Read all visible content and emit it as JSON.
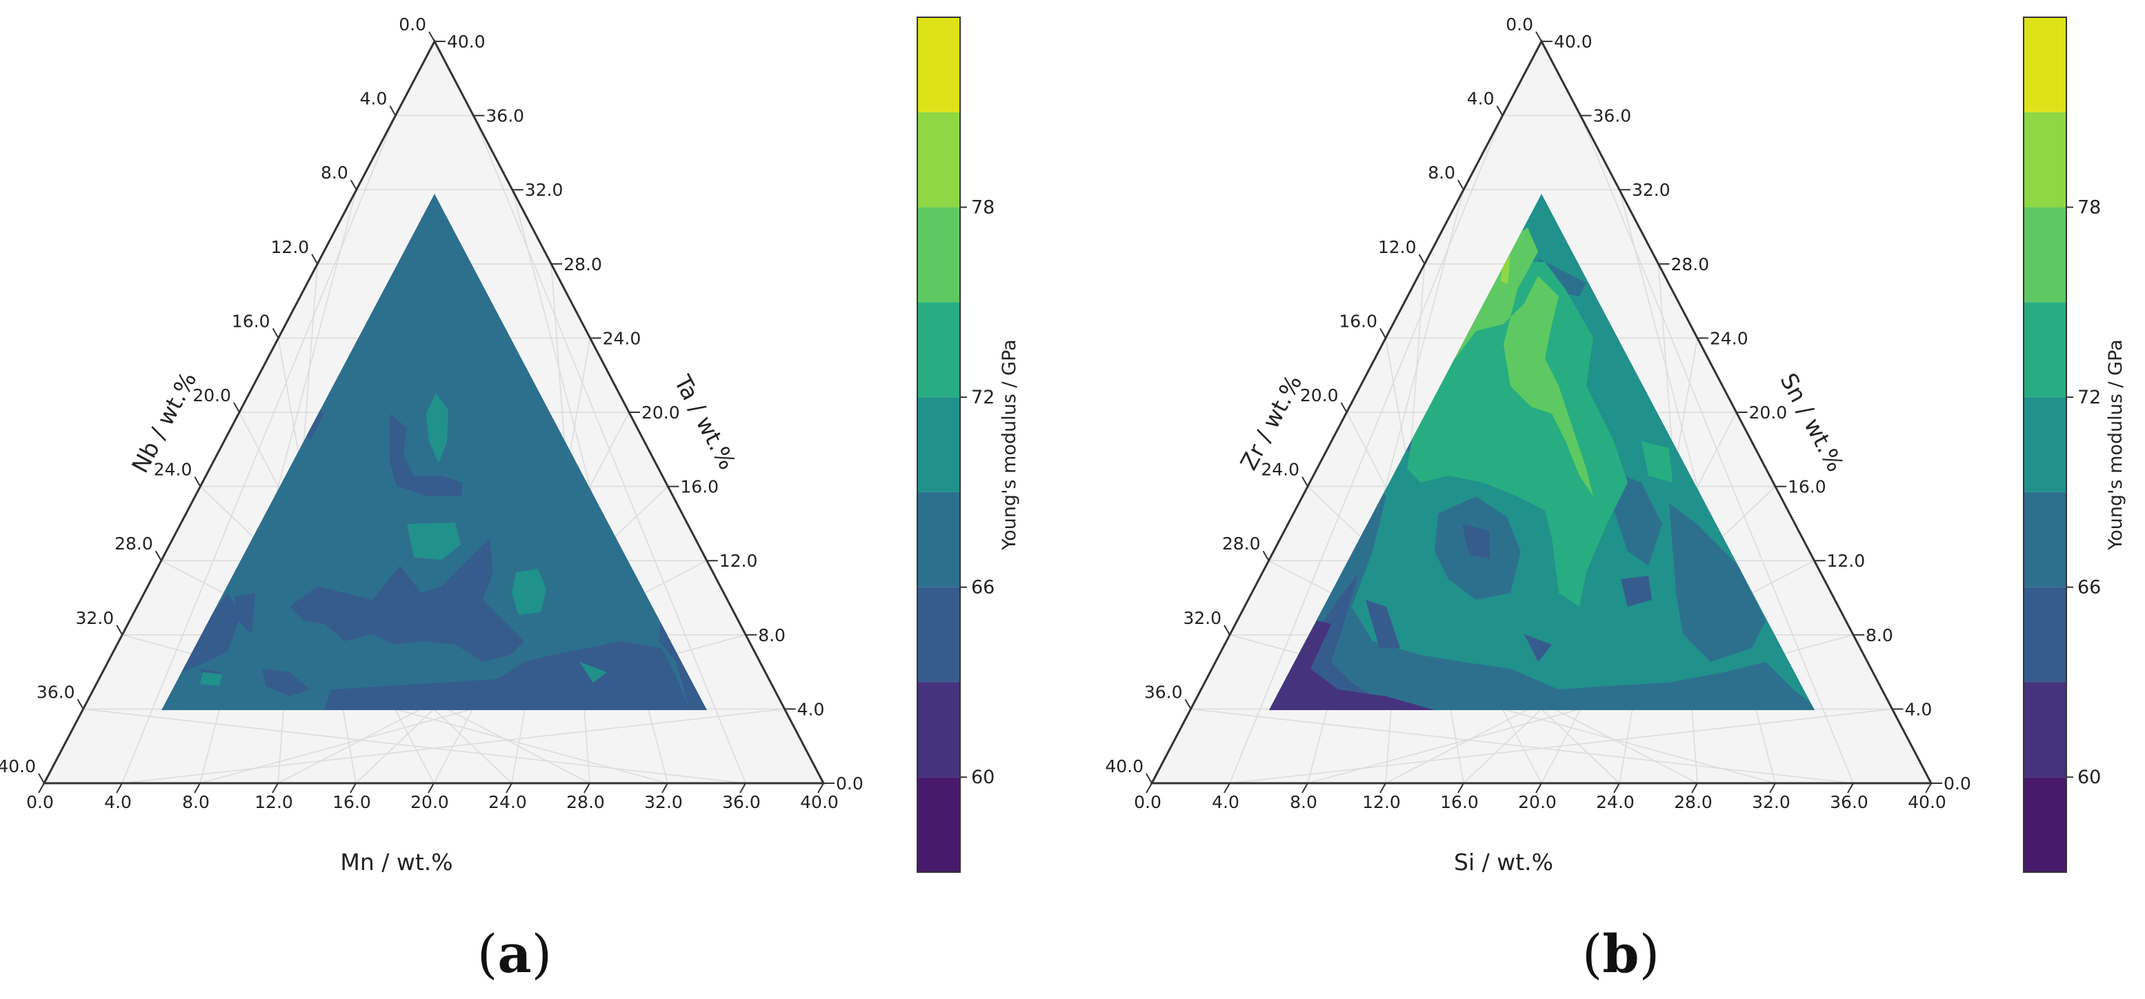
{
  "chart_data": [
    {
      "type": "heatmap",
      "subtype": "ternary-contour",
      "panel_label": "a",
      "bottom_axis_label": "Mn / wt.%",
      "right_axis_label": "Ta / wt.%",
      "left_axis_label": "Nb / wt.%",
      "ticks": [
        "0.0",
        "4.0",
        "8.0",
        "12.0",
        "16.0",
        "20.0",
        "24.0",
        "28.0",
        "32.0",
        "36.0",
        "40.0"
      ],
      "axis_range": [
        0,
        40
      ],
      "data_region": {
        "min_each_component_wt_pct": 4.0,
        "note_hidden": ""
      },
      "colorbar": {
        "label": "Young's modulus / GPa",
        "tick_labels": [
          "60",
          "66",
          "72",
          "78"
        ],
        "tick_values": [
          60,
          66,
          72,
          78
        ],
        "levels": [
          57,
          60,
          63,
          66,
          69,
          72,
          75,
          78,
          81,
          84
        ],
        "colors": [
          "#481a6c",
          "#46337e",
          "#365c8d",
          "#2d708e",
          "#21918c",
          "#27ad81",
          "#5ec962",
          "#8fd744",
          "#dde318"
        ]
      },
      "background_level_index": 3,
      "regions": [
        {
          "level_index": 2,
          "points": [
            [
              38,
              4
            ],
            [
              36,
              2
            ],
            [
              37,
              3
            ]
          ]
        },
        {
          "level_index": 2,
          "points": [
            [
              12,
              22
            ],
            [
              9,
              22
            ],
            [
              10,
              25
            ]
          ]
        }
      ]
    },
    {
      "type": "heatmap",
      "subtype": "ternary-contour",
      "panel_label": "b",
      "bottom_axis_label": "Si / wt.%",
      "right_axis_label": "Sn / wt.%",
      "left_axis_label": "Zr / wt.%",
      "ticks": [
        "0.0",
        "4.0",
        "8.0",
        "12.0",
        "16.0",
        "20.0",
        "24.0",
        "28.0",
        "32.0",
        "36.0",
        "40.0"
      ],
      "axis_range": [
        0,
        40
      ],
      "colorbar": {
        "label": "Young's modulus / GPa",
        "tick_labels": [
          "60",
          "66",
          "72",
          "78"
        ],
        "tick_values": [
          60,
          66,
          72,
          78
        ],
        "levels": [
          57,
          60,
          63,
          66,
          69,
          72,
          75,
          78,
          81,
          84
        ],
        "colors": [
          "#481a6c",
          "#46337e",
          "#365c8d",
          "#2d708e",
          "#21918c",
          "#27ad81",
          "#5ec962",
          "#8fd744",
          "#dde318"
        ]
      },
      "background_level_index": 4
    }
  ]
}
